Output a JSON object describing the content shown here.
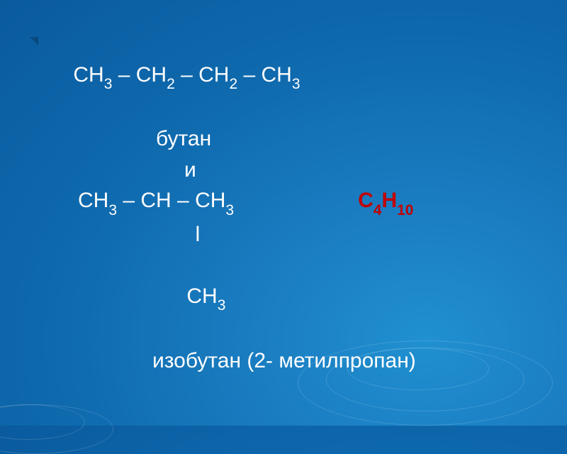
{
  "slide": {
    "background_gradient": [
      "#2090d0",
      "#1a7cc0",
      "#0f6aae",
      "#0a5a9e"
    ],
    "text_color": "#ffffff",
    "accent_color": "#c00000",
    "font_size_pt": 30,
    "sub_font_scale": 0.7,
    "line1": {
      "parts": [
        "СН",
        "3",
        " – СН",
        "2",
        " – СН",
        "2",
        " – СН",
        "3"
      ]
    },
    "line2": "бутан",
    "line3": "и",
    "line4_left": {
      "parts": [
        "СН",
        "3",
        " – СН – СН",
        "3"
      ]
    },
    "line4_right": {
      "parts": [
        "С",
        "4",
        "Н",
        "10"
      ]
    },
    "line5": "ǀ",
    "line6": {
      "parts": [
        "СН",
        "3"
      ]
    },
    "line7": "изобутан (2- метилпропан)"
  }
}
